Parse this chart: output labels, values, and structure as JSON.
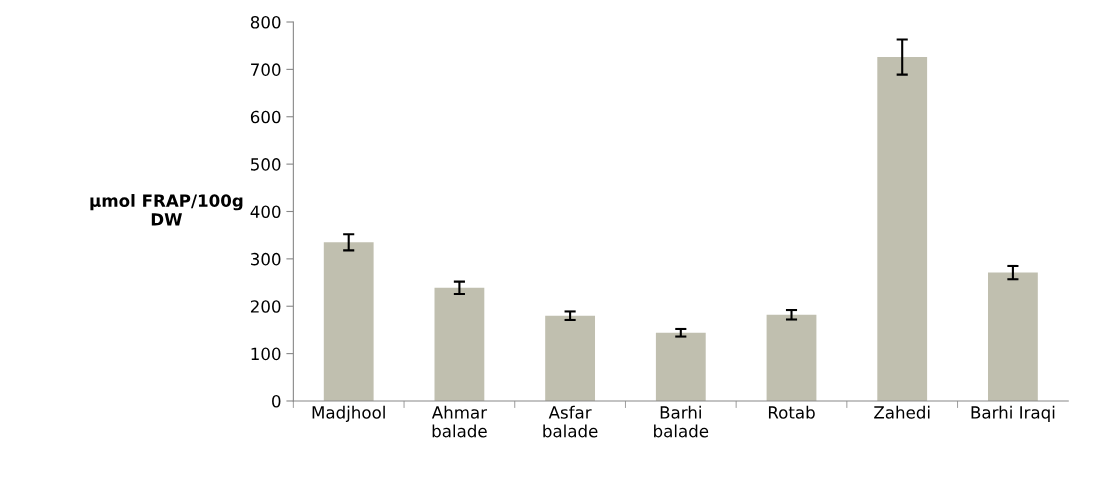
{
  "chart_data": {
    "type": "bar",
    "ylabel": "µmol FRAP/100g\nDW",
    "categories": [
      "Madjhool",
      "Ahmar\nbalade",
      "Asfar\nbalade",
      "Barhi\nbalade",
      "Rotab",
      "Zahedi",
      "Barhi Iraqi"
    ],
    "values": [
      335,
      239,
      180,
      144,
      182,
      726,
      271
    ],
    "errors": [
      17,
      13,
      9,
      8,
      10,
      37,
      14
    ],
    "color": "#c0bfaf",
    "ylim": [
      0,
      800
    ],
    "yticks": [
      0,
      100,
      200,
      300,
      400,
      500,
      600,
      700,
      800
    ],
    "grid": false
  }
}
